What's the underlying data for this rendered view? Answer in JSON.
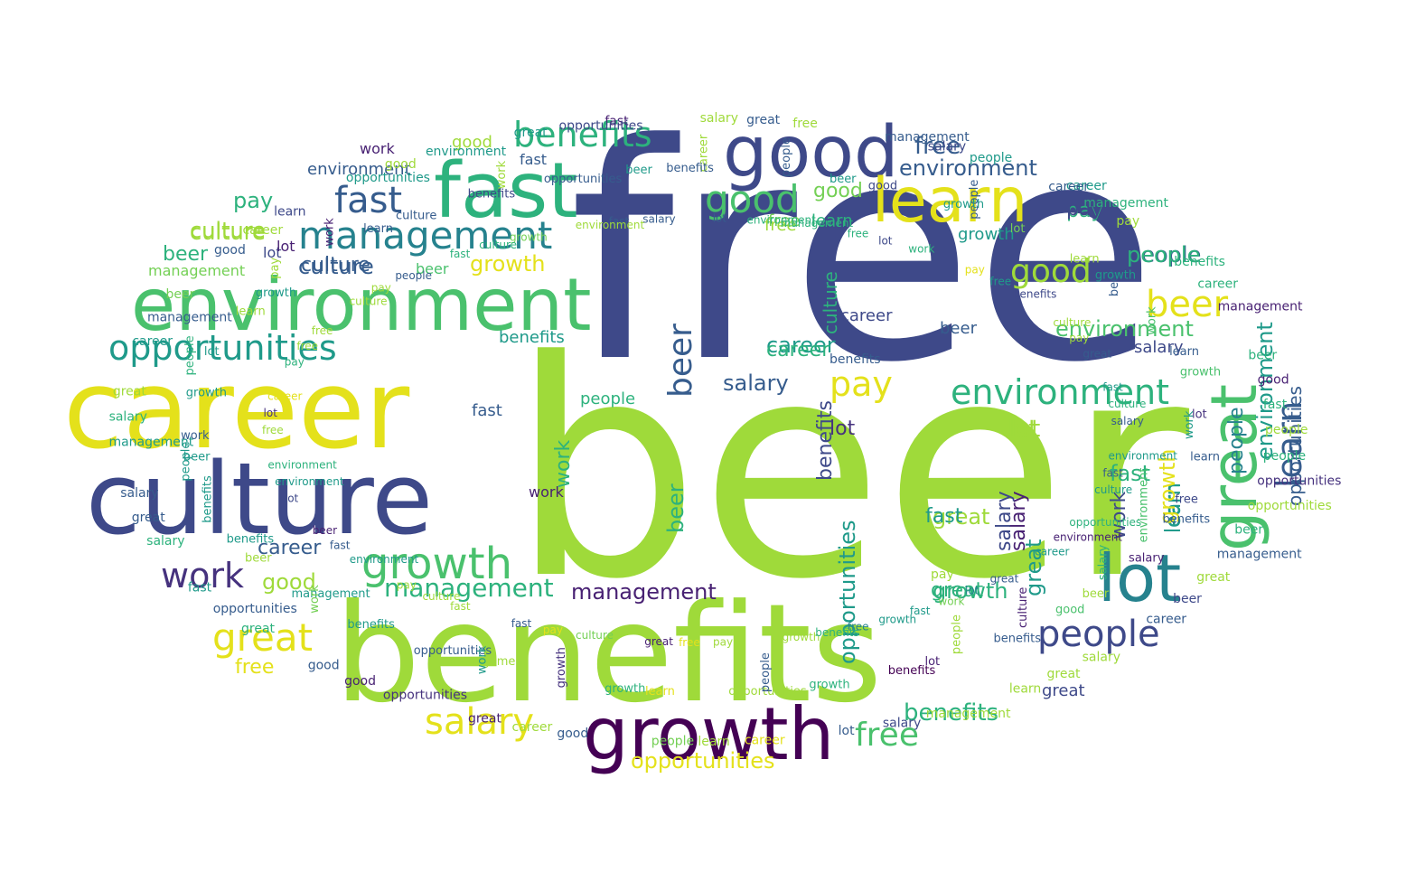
{
  "palette": {
    "yellow": "#e4e11b",
    "lime": "#9fda3a",
    "lightgreen": "#74d055",
    "green": "#4ac16d",
    "seagreen": "#2db27d",
    "teal": "#1f9a8a",
    "tealblue": "#26828e",
    "blue": "#2e6e8e",
    "steel": "#365c8d",
    "indigo": "#3e4989",
    "violet": "#46327e",
    "purple": "#440154",
    "dark": "#482173"
  },
  "words": [
    {
      "text": "free",
      "color": "indigo"
    },
    {
      "text": "beer",
      "color": "lime"
    },
    {
      "text": "benefits",
      "color": "lime"
    },
    {
      "text": "career",
      "color": "yellow"
    },
    {
      "text": "culture",
      "color": "indigo"
    },
    {
      "text": "environment",
      "color": "green"
    },
    {
      "text": "fast",
      "color": "seagreen"
    },
    {
      "text": "good",
      "color": "indigo"
    },
    {
      "text": "learn",
      "color": "yellow"
    },
    {
      "text": "growth",
      "color": "purple"
    },
    {
      "text": "lot",
      "color": "tealblue"
    },
    {
      "text": "great",
      "color": "green"
    },
    {
      "text": "management",
      "color": "tealblue"
    },
    {
      "text": "opportunities",
      "color": "teal"
    },
    {
      "text": "benefits",
      "color": "seagreen"
    },
    {
      "text": "work",
      "color": "violet"
    },
    {
      "text": "growth",
      "color": "green"
    },
    {
      "text": "salary",
      "color": "yellow"
    },
    {
      "text": "culture",
      "color": "steel"
    },
    {
      "text": "career",
      "color": "steel"
    },
    {
      "text": "fast",
      "color": "steel"
    },
    {
      "text": "environment",
      "color": "seagreen"
    },
    {
      "text": "people",
      "color": "indigo"
    },
    {
      "text": "pay",
      "color": "yellow"
    },
    {
      "text": "beer",
      "color": "yellow"
    },
    {
      "text": "good",
      "color": "green"
    },
    {
      "text": "management",
      "color": "seagreen"
    },
    {
      "text": "free",
      "color": "green"
    },
    {
      "text": "great",
      "color": "yellow"
    },
    {
      "text": "opportunities",
      "color": "yellow"
    },
    {
      "text": "opportunities",
      "color": "steel"
    },
    {
      "text": "environment",
      "color": "green"
    },
    {
      "text": "lot",
      "color": "lime"
    },
    {
      "text": "learn",
      "color": "steel"
    },
    {
      "text": "benefits",
      "color": "seagreen"
    },
    {
      "text": "salary",
      "color": "steel"
    },
    {
      "text": "career",
      "color": "teal"
    },
    {
      "text": "growth",
      "color": "yellow"
    },
    {
      "text": "pay",
      "color": "seagreen"
    },
    {
      "text": "culture",
      "color": "lime"
    },
    {
      "text": "fast",
      "color": "seagreen"
    },
    {
      "text": "people",
      "color": "steel"
    },
    {
      "text": "good",
      "color": "lime"
    },
    {
      "text": "management",
      "color": "dark"
    },
    {
      "text": "beer",
      "color": "steel"
    },
    {
      "text": "work",
      "color": "seagreen"
    },
    {
      "text": "environment",
      "color": "steel"
    },
    {
      "text": "free",
      "color": "steel"
    },
    {
      "text": "culture",
      "color": "steel"
    },
    {
      "text": "benefits",
      "color": "teal"
    },
    {
      "text": "learn",
      "color": "teal"
    },
    {
      "text": "great",
      "color": "lime"
    },
    {
      "text": "growth",
      "color": "seagreen"
    },
    {
      "text": "salary",
      "color": "dark"
    },
    {
      "text": "career",
      "color": "seagreen"
    },
    {
      "text": "fast",
      "color": "steel"
    },
    {
      "text": "pay",
      "color": "seagreen"
    },
    {
      "text": "beer",
      "color": "seagreen"
    },
    {
      "text": "people",
      "color": "seagreen"
    },
    {
      "text": "lot",
      "color": "violet"
    },
    {
      "text": "learn",
      "color": "teal"
    },
    {
      "text": "opportunities",
      "color": "teal"
    },
    {
      "text": "culture",
      "color": "lime"
    },
    {
      "text": "growth",
      "color": "yellow"
    },
    {
      "text": "people",
      "color": "seagreen"
    },
    {
      "text": "good",
      "color": "lime"
    },
    {
      "text": "fast",
      "color": "teal"
    },
    {
      "text": "great",
      "color": "teal"
    },
    {
      "text": "work",
      "color": "indigo"
    },
    {
      "text": "salary",
      "color": "indigo"
    },
    {
      "text": "career",
      "color": "indigo"
    },
    {
      "text": "beer",
      "color": "steel"
    },
    {
      "text": "free",
      "color": "lime"
    },
    {
      "text": "environment",
      "color": "teal"
    },
    {
      "text": "benefits",
      "color": "indigo"
    },
    {
      "text": "salary",
      "color": "indigo"
    },
    {
      "text": "people",
      "color": "tealblue"
    },
    {
      "text": "lot",
      "color": "lime"
    },
    {
      "text": "great",
      "color": "indigo"
    },
    {
      "text": "beer",
      "color": "seagreen"
    },
    {
      "text": "work",
      "color": "dark"
    },
    {
      "text": "lot",
      "color": "indigo"
    },
    {
      "text": "benefits",
      "color": "steel"
    },
    {
      "text": "good",
      "color": "lime"
    },
    {
      "text": "free",
      "color": "yellow"
    },
    {
      "text": "learn",
      "color": "seagreen"
    },
    {
      "text": "fast",
      "color": "steel"
    },
    {
      "text": "culture",
      "color": "seagreen"
    },
    {
      "text": "pay",
      "color": "indigo"
    },
    {
      "text": "good",
      "color": "lightgreen"
    },
    {
      "text": "career",
      "color": "teal"
    },
    {
      "text": "beer",
      "color": "green"
    },
    {
      "text": "work",
      "color": "dark"
    },
    {
      "text": "environment",
      "color": "steel"
    },
    {
      "text": "growth",
      "color": "teal"
    },
    {
      "text": "great",
      "color": "seagreen"
    },
    {
      "text": "pay",
      "color": "lime"
    },
    {
      "text": "management",
      "color": "lightgreen"
    },
    {
      "text": "lot",
      "color": "dark"
    },
    {
      "text": "free",
      "color": "lightgreen"
    },
    {
      "text": "people",
      "color": "lime"
    },
    {
      "text": "salary",
      "color": "dark"
    },
    {
      "text": "fast",
      "color": "teal"
    },
    {
      "text": "beer",
      "color": "seagreen"
    },
    {
      "text": "culture",
      "color": "dark"
    },
    {
      "text": "growth",
      "color": "lime"
    },
    {
      "text": "career",
      "color": "steel"
    },
    {
      "text": "benefits",
      "color": "purple"
    },
    {
      "text": "great",
      "color": "dark"
    },
    {
      "text": "learn",
      "color": "lime"
    },
    {
      "text": "opportunities",
      "color": "lime"
    },
    {
      "text": "fast",
      "color": "steel"
    },
    {
      "text": "lot",
      "color": "steel"
    },
    {
      "text": "growth",
      "color": "violet"
    },
    {
      "text": "pay",
      "color": "lime"
    },
    {
      "text": "people",
      "color": "lightgreen"
    },
    {
      "text": "opportunities",
      "color": "steel"
    },
    {
      "text": "beer",
      "color": "dark"
    },
    {
      "text": "great",
      "color": "dark"
    },
    {
      "text": "management",
      "color": "teal"
    },
    {
      "text": "environment",
      "color": "seagreen"
    },
    {
      "text": "good",
      "color": "steel"
    },
    {
      "text": "benefits",
      "color": "teal"
    },
    {
      "text": "career",
      "color": "yellow"
    },
    {
      "text": "fast",
      "color": "teal"
    },
    {
      "text": "work",
      "color": "steel"
    },
    {
      "text": "free",
      "color": "lime"
    },
    {
      "text": "salary",
      "color": "steel"
    },
    {
      "text": "lot",
      "color": "teal"
    },
    {
      "text": "people",
      "color": "steel"
    },
    {
      "text": "great",
      "color": "lime"
    },
    {
      "text": "pay",
      "color": "lime"
    },
    {
      "text": "growth",
      "color": "lightgreen"
    },
    {
      "text": "beer",
      "color": "lightgreen"
    },
    {
      "text": "culture",
      "color": "steel"
    },
    {
      "text": "salary",
      "color": "steel"
    },
    {
      "text": "learn",
      "color": "indigo"
    },
    {
      "text": "opportunities",
      "color": "steel"
    },
    {
      "text": "management",
      "color": "seagreen"
    },
    {
      "text": "environment",
      "color": "teal"
    },
    {
      "text": "career",
      "color": "lime"
    },
    {
      "text": "work",
      "color": "seagreen"
    },
    {
      "text": "fast",
      "color": "dark"
    },
    {
      "text": "good",
      "color": "indigo"
    },
    {
      "text": "benefits",
      "color": "indigo"
    },
    {
      "text": "free",
      "color": "lime"
    },
    {
      "text": "lot",
      "color": "lightgreen"
    },
    {
      "text": "great",
      "color": "steel"
    },
    {
      "text": "people",
      "color": "teal"
    },
    {
      "text": "beer",
      "color": "steel"
    },
    {
      "text": "salary",
      "color": "steel"
    },
    {
      "text": "pay",
      "color": "lime"
    },
    {
      "text": "growth",
      "color": "green"
    },
    {
      "text": "culture",
      "color": "teal"
    },
    {
      "text": "management",
      "color": "dark"
    },
    {
      "text": "learn",
      "color": "steel"
    },
    {
      "text": "career",
      "color": "teal"
    },
    {
      "text": "fast",
      "color": "seagreen"
    },
    {
      "text": "environment",
      "color": "green"
    },
    {
      "text": "work",
      "color": "lightgreen"
    },
    {
      "text": "opportunities",
      "color": "lime"
    },
    {
      "text": "good",
      "color": "green"
    },
    {
      "text": "benefits",
      "color": "seagreen"
    },
    {
      "text": "beer",
      "color": "indigo"
    },
    {
      "text": "lot",
      "color": "dark"
    },
    {
      "text": "free",
      "color": "yellow"
    },
    {
      "text": "great",
      "color": "lime"
    },
    {
      "text": "people",
      "color": "steel"
    },
    {
      "text": "pay",
      "color": "yellow"
    },
    {
      "text": "salary",
      "color": "indigo"
    },
    {
      "text": "growth",
      "color": "seagreen"
    },
    {
      "text": "culture",
      "color": "lime"
    },
    {
      "text": "learn",
      "color": "lime"
    },
    {
      "text": "management",
      "color": "lime"
    },
    {
      "text": "fast",
      "color": "steel"
    },
    {
      "text": "career",
      "color": "lime"
    },
    {
      "text": "work",
      "color": "lightgreen"
    },
    {
      "text": "environment",
      "color": "teal"
    },
    {
      "text": "good",
      "color": "dark"
    },
    {
      "text": "benefits",
      "color": "teal"
    },
    {
      "text": "lot",
      "color": "violet"
    },
    {
      "text": "opportunities",
      "color": "steel"
    },
    {
      "text": "beer",
      "color": "teal"
    },
    {
      "text": "free",
      "color": "lime"
    },
    {
      "text": "great",
      "color": "steel"
    },
    {
      "text": "people",
      "color": "seagreen"
    },
    {
      "text": "pay",
      "color": "lime"
    },
    {
      "text": "salary",
      "color": "seagreen"
    },
    {
      "text": "growth",
      "color": "teal"
    },
    {
      "text": "culture",
      "color": "seagreen"
    },
    {
      "text": "management",
      "color": "steel"
    },
    {
      "text": "learn",
      "color": "steel"
    },
    {
      "text": "fast",
      "color": "steel"
    },
    {
      "text": "career",
      "color": "lime"
    },
    {
      "text": "work",
      "color": "lime"
    },
    {
      "text": "environment",
      "color": "seagreen"
    },
    {
      "text": "good",
      "color": "lime"
    },
    {
      "text": "benefits",
      "color": "steel"
    },
    {
      "text": "lot",
      "color": "indigo"
    },
    {
      "text": "opportunities",
      "color": "indigo"
    },
    {
      "text": "beer",
      "color": "teal"
    },
    {
      "text": "free",
      "color": "teal"
    },
    {
      "text": "great",
      "color": "steel"
    },
    {
      "text": "people",
      "color": "steel"
    },
    {
      "text": "pay",
      "color": "lime"
    },
    {
      "text": "salary",
      "color": "indigo"
    },
    {
      "text": "growth",
      "color": "teal"
    },
    {
      "text": "culture",
      "color": "seagreen"
    },
    {
      "text": "management",
      "color": "seagreen"
    },
    {
      "text": "learn",
      "color": "steel"
    },
    {
      "text": "fast",
      "color": "steel"
    },
    {
      "text": "career",
      "color": "seagreen"
    },
    {
      "text": "work",
      "color": "teal"
    },
    {
      "text": "environment",
      "color": "dark"
    },
    {
      "text": "good",
      "color": "dark"
    },
    {
      "text": "benefits",
      "color": "steel"
    },
    {
      "text": "lot",
      "color": "tealblue"
    },
    {
      "text": "opportunities",
      "color": "violet"
    },
    {
      "text": "beer",
      "color": "lime"
    },
    {
      "text": "free",
      "color": "tealblue"
    },
    {
      "text": "great",
      "color": "lime"
    },
    {
      "text": "people",
      "color": "lime"
    },
    {
      "text": "pay",
      "color": "lime"
    },
    {
      "text": "salary",
      "color": "lime"
    },
    {
      "text": "growth",
      "color": "seagreen"
    },
    {
      "text": "culture",
      "color": "lightgreen"
    },
    {
      "text": "management",
      "color": "lime"
    },
    {
      "text": "learn",
      "color": "yellow"
    },
    {
      "text": "fast",
      "color": "lime"
    },
    {
      "text": "career",
      "color": "yellow"
    },
    {
      "text": "work",
      "color": "teal"
    },
    {
      "text": "environment",
      "color": "teal"
    },
    {
      "text": "good",
      "color": "steel"
    },
    {
      "text": "benefits",
      "color": "teal"
    },
    {
      "text": "lot",
      "color": "indigo"
    },
    {
      "text": "opportunities",
      "color": "violet"
    },
    {
      "text": "beer",
      "color": "lime"
    },
    {
      "text": "free",
      "color": "lime"
    },
    {
      "text": "great",
      "color": "seagreen"
    },
    {
      "text": "people",
      "color": "teal"
    },
    {
      "text": "pay",
      "color": "seagreen"
    },
    {
      "text": "salary",
      "color": "seagreen"
    },
    {
      "text": "growth",
      "color": "teal"
    },
    {
      "text": "culture",
      "color": "lime"
    },
    {
      "text": "management",
      "color": "teal"
    },
    {
      "text": "learn",
      "color": "lime"
    },
    {
      "text": "fast",
      "color": "seagreen"
    },
    {
      "text": "career",
      "color": "teal"
    },
    {
      "text": "work",
      "color": "dark"
    },
    {
      "text": "environment",
      "color": "lime"
    },
    {
      "text": "good",
      "color": "steel"
    },
    {
      "text": "benefits",
      "color": "indigo"
    },
    {
      "text": "lot",
      "color": "steel"
    },
    {
      "text": "opportunities",
      "color": "teal"
    },
    {
      "text": "beer",
      "color": "teal"
    },
    {
      "text": "free",
      "color": "seagreen"
    },
    {
      "text": "great",
      "color": "teal"
    },
    {
      "text": "people",
      "color": "steel"
    },
    {
      "text": "pay",
      "color": "yellow"
    },
    {
      "text": "salary",
      "color": "lime"
    },
    {
      "text": "growth",
      "color": "teal"
    },
    {
      "text": "culture",
      "color": "lime"
    },
    {
      "text": "management",
      "color": "steel"
    },
    {
      "text": "learn",
      "color": "lime"
    },
    {
      "text": "fast",
      "color": "teal"
    },
    {
      "text": "career",
      "color": "steel"
    },
    {
      "text": "work",
      "color": "green"
    },
    {
      "text": "environment",
      "color": "teal"
    },
    {
      "text": "benefits",
      "color": "seagreen"
    },
    {
      "text": "lot",
      "color": "violet"
    },
    {
      "text": "opportunities",
      "color": "seagreen"
    },
    {
      "text": "beer",
      "color": "seagreen"
    },
    {
      "text": "free",
      "color": "indigo"
    },
    {
      "text": "great",
      "color": "steel"
    },
    {
      "text": "people",
      "color": "seagreen"
    },
    {
      "text": "salary",
      "color": "seagreen"
    },
    {
      "text": "growth",
      "color": "teal"
    },
    {
      "text": "management",
      "color": "steel"
    },
    {
      "text": "benefits",
      "color": "steel"
    }
  ]
}
